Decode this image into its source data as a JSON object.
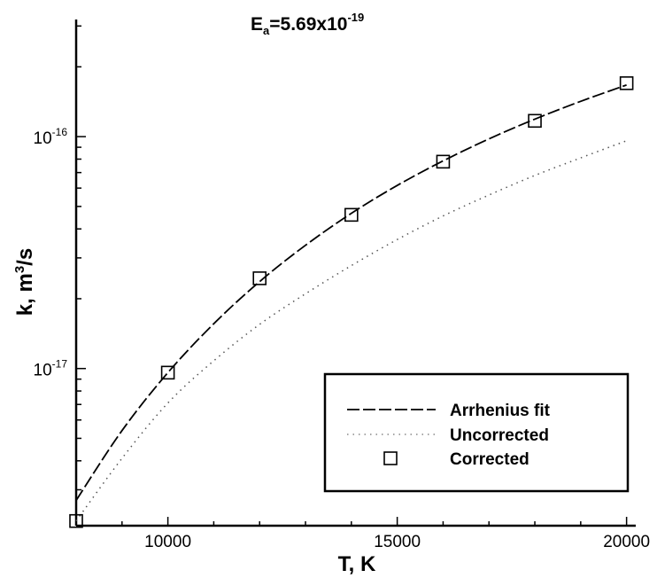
{
  "chart_data": {
    "type": "line",
    "title_main": "E",
    "title_sub": "a",
    "title_value": "=5.69x10",
    "title_exp": "-19",
    "xlabel": "T, K",
    "ylabel_main": "k, m",
    "ylabel_sup": "3",
    "ylabel_tail": "/s",
    "xlim": [
      8000,
      20200
    ],
    "ylim": [
      2.1e-18,
      3.2e-16
    ],
    "yscale": "log",
    "grid": false,
    "legend_position": "bottom-right",
    "x_ticks": [
      {
        "value": 10000,
        "label": "10000"
      },
      {
        "value": 15000,
        "label": "15000"
      },
      {
        "value": 20000,
        "label": "20000"
      }
    ],
    "y_ticks": [
      {
        "value": 1e-16,
        "base": "10",
        "exp": "-16"
      },
      {
        "value": 1e-17,
        "base": "10",
        "exp": "-17"
      }
    ],
    "series": [
      {
        "name": "Arrhenius fit",
        "style": "dashed",
        "color": "#000000",
        "x": [
          8000,
          9000,
          10000,
          11000,
          12000,
          13000,
          14000,
          15000,
          16000,
          17000,
          18000,
          19000,
          20000
        ],
        "y": [
          2.7e-18,
          5.4e-18,
          9.6e-18,
          1.56e-17,
          2.37e-17,
          3.4e-17,
          4.67e-17,
          6.16e-17,
          7.86e-17,
          9.78e-17,
          1.19e-16,
          1.42e-16,
          1.67e-16
        ]
      },
      {
        "name": "Uncorrected",
        "style": "dotted",
        "color": "#555555",
        "x": [
          8000,
          9000,
          10000,
          11000,
          12000,
          13000,
          14000,
          15000,
          16000,
          17000,
          18000,
          19000,
          20000
        ],
        "y": [
          2.2e-18,
          4.1e-18,
          7.1e-18,
          1.08e-17,
          1.55e-17,
          2.1e-17,
          2.78e-17,
          3.6e-17,
          4.55e-17,
          5.6e-17,
          6.8e-17,
          8.1e-17,
          9.6e-17
        ]
      },
      {
        "name": "Corrected",
        "style": "markers",
        "marker": "square",
        "color": "#000000",
        "x": [
          8000,
          10000,
          12000,
          14000,
          16000,
          18000,
          20000
        ],
        "y": [
          2.2e-18,
          9.6e-18,
          2.45e-17,
          4.6e-17,
          7.8e-17,
          1.17e-16,
          1.7e-16
        ]
      }
    ],
    "legend": [
      {
        "label": "Arrhenius fit",
        "symbol": "dashed"
      },
      {
        "label": "Uncorrected",
        "symbol": "dotted"
      },
      {
        "label": "Corrected",
        "symbol": "square"
      }
    ]
  }
}
